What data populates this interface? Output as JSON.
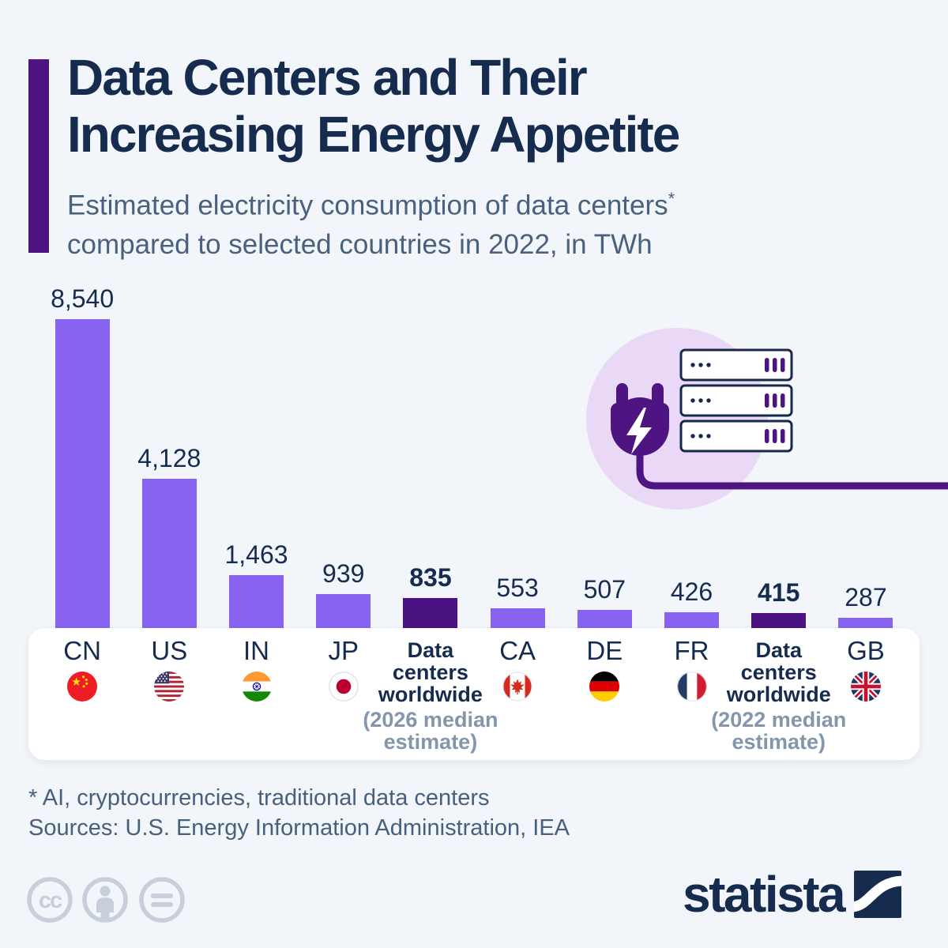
{
  "header": {
    "title_line1": "Data Centers and Their",
    "title_line2": "Increasing Energy Appetite",
    "subtitle_line1": "Estimated electricity consumption of data centers",
    "subtitle_superscript": "*",
    "subtitle_line2": "compared to selected countries in 2022, in TWh"
  },
  "chart_data": {
    "type": "bar",
    "title": "Data Centers and Their Increasing Energy Appetite",
    "subtitle": "Estimated electricity consumption of data centers* compared to selected countries in 2022, in TWh",
    "unit": "TWh",
    "year_shown": "2022",
    "categories": [
      "CN",
      "US",
      "IN",
      "JP",
      "Data centers worldwide (2026 median estimate)",
      "CA",
      "DE",
      "FR",
      "Data centers worldwide (2022 median estimate)",
      "GB"
    ],
    "values": [
      8540,
      4128,
      1463,
      939,
      835,
      553,
      507,
      426,
      415,
      287
    ],
    "value_labels": [
      "8,540",
      "4,128",
      "1,463",
      "939",
      "835",
      "553",
      "507",
      "426",
      "415",
      "287"
    ],
    "highlighted_indices": [
      4,
      8
    ],
    "ylim": [
      0,
      8540
    ],
    "grid": false,
    "legend_position": "below",
    "bar_color": "#8763f0",
    "highlight_color": "#4b1282"
  },
  "legend": {
    "items": [
      {
        "kind": "country",
        "code": "CN",
        "flag": "cn"
      },
      {
        "kind": "country",
        "code": "US",
        "flag": "us"
      },
      {
        "kind": "country",
        "code": "IN",
        "flag": "in"
      },
      {
        "kind": "country",
        "code": "JP",
        "flag": "jp"
      },
      {
        "kind": "label",
        "lines": [
          "Data",
          "centers",
          "worldwide"
        ],
        "note_lines": [
          "(2026 median",
          "estimate)"
        ]
      },
      {
        "kind": "country",
        "code": "CA",
        "flag": "ca"
      },
      {
        "kind": "country",
        "code": "DE",
        "flag": "de"
      },
      {
        "kind": "country",
        "code": "FR",
        "flag": "fr"
      },
      {
        "kind": "label",
        "lines": [
          "Data",
          "centers",
          "worldwide"
        ],
        "note_lines": [
          "(2022 median",
          "estimate)"
        ]
      },
      {
        "kind": "country",
        "code": "GB",
        "flag": "gb"
      }
    ]
  },
  "footer": {
    "footnote": "* AI, cryptocurrencies, traditional data centers",
    "sources": "Sources: U.S. Energy Information Administration, IEA"
  },
  "branding": {
    "logo_text": "statista",
    "license_icons": [
      "cc-icon",
      "attribution-icon",
      "no-derivatives-icon"
    ]
  },
  "colors": {
    "background": "#f2f5f9",
    "accent_purple": "#4e1482",
    "bar_purple": "#8763f0",
    "bar_dark_purple": "#4b1282",
    "navy_text": "#162c4e",
    "subtitle_gray": "#4a617e",
    "legend_note_gray": "#8496ab",
    "license_icon_gray": "#c6cfda"
  }
}
